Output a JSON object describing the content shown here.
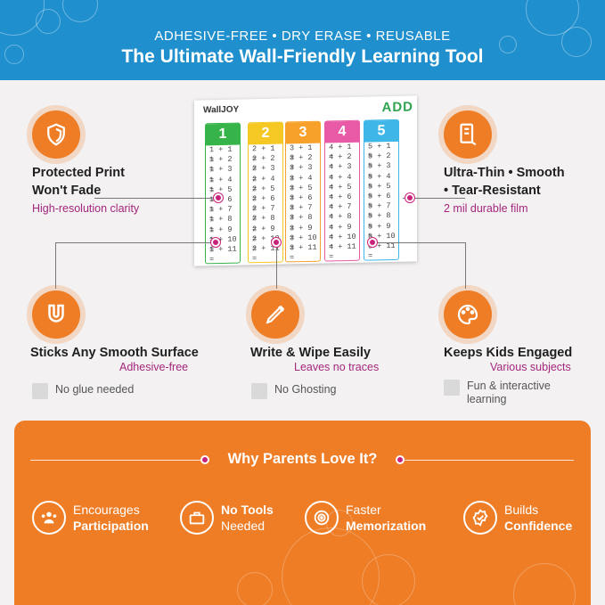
{
  "header": {
    "subtitle": "ADHESIVE-FREE • DRY ERASE • REUSABLE",
    "title": "The Ultimate Wall-Friendly Learning Tool"
  },
  "features": [
    {
      "icon": "shield-icon",
      "title1": "Protected Print",
      "title2": "Won't Fade",
      "sub": "High-resolution clarity"
    },
    {
      "icon": "film-icon",
      "title1": "Ultra-Thin • Smooth",
      "title2": "• Tear-Resistant",
      "sub": "2 mil durable film"
    },
    {
      "icon": "magnet-icon",
      "title1": "Sticks Any Smooth Surface",
      "sub": "Adhesive-free",
      "note": "No glue needed",
      "note_icon": "no-glue-icon"
    },
    {
      "icon": "marker-icon",
      "title1": "Write & Wipe Easily",
      "sub": "Leaves no traces",
      "note": "No Ghosting",
      "note_icon": "eraser-icon"
    },
    {
      "icon": "palette-icon",
      "title1": "Keeps Kids Engaged",
      "sub": "Various subjects",
      "note1": "Fun & interactive",
      "note2": "learning",
      "note_icon": "lightbulb-icon"
    }
  ],
  "poster": {
    "brand": "WallJOY",
    "heading": "ADD",
    "columns": [
      {
        "num": "1",
        "rows": [
          "1 + 1 =",
          "1 + 2 =",
          "1 + 3 =",
          "1 + 4 =",
          "1 + 5 =",
          "1 + 6 =",
          "1 + 7 =",
          "1 + 8 =",
          "1 + 9 =",
          "1 + 10 =",
          "1 + 11 ="
        ]
      },
      {
        "num": "2",
        "rows": [
          "2 + 1 =",
          "2 + 2 =",
          "2 + 3 =",
          "2 + 4 =",
          "2 + 5 =",
          "2 + 6 =",
          "2 + 7 =",
          "2 + 8 =",
          "2 + 9 =",
          "2 + 10 =",
          "2 + 11 ="
        ]
      },
      {
        "num": "3",
        "rows": [
          "3 + 1 =",
          "3 + 2 =",
          "3 + 3 =",
          "3 + 4 =",
          "3 + 5 =",
          "3 + 6 =",
          "3 + 7 =",
          "3 + 8 =",
          "3 + 9 =",
          "3 + 10 =",
          "3 + 11 ="
        ]
      },
      {
        "num": "4",
        "rows": [
          "4 + 1 =",
          "4 + 2 =",
          "4 + 3 =",
          "4 + 4 =",
          "4 + 5 =",
          "4 + 6 =",
          "4 + 7 =",
          "4 + 8 =",
          "4 + 9 =",
          "4 + 10 =",
          "4 + 11 ="
        ]
      },
      {
        "num": "5",
        "rows": [
          "5 + 1 =",
          "5 + 2 =",
          "5 + 3 =",
          "5 + 4 =",
          "5 + 5 =",
          "5 + 6 =",
          "5 + 7 =",
          "5 + 8 =",
          "5 + 9 =",
          "5 + 10 =",
          "5 + 11 ="
        ]
      }
    ],
    "colors": [
      "#36b44a",
      "#f5c823",
      "#f7a12b",
      "#e85aa5",
      "#3fb6e8"
    ]
  },
  "why": {
    "title": "Why Parents Love It?",
    "benefits": [
      {
        "icon": "group-icon",
        "l1": "Encourages",
        "l2": "Participation"
      },
      {
        "icon": "toolbox-icon",
        "l1": "No Tools",
        "l2": "Needed"
      },
      {
        "icon": "target-icon",
        "l1": "Faster",
        "l2": "Memorization"
      },
      {
        "icon": "badge-check-icon",
        "l1": "Builds",
        "l2": "Confidence"
      }
    ]
  },
  "colors": {
    "accent": "#ee7d26",
    "header": "#1f8fce",
    "magenta": "#c8227a"
  }
}
